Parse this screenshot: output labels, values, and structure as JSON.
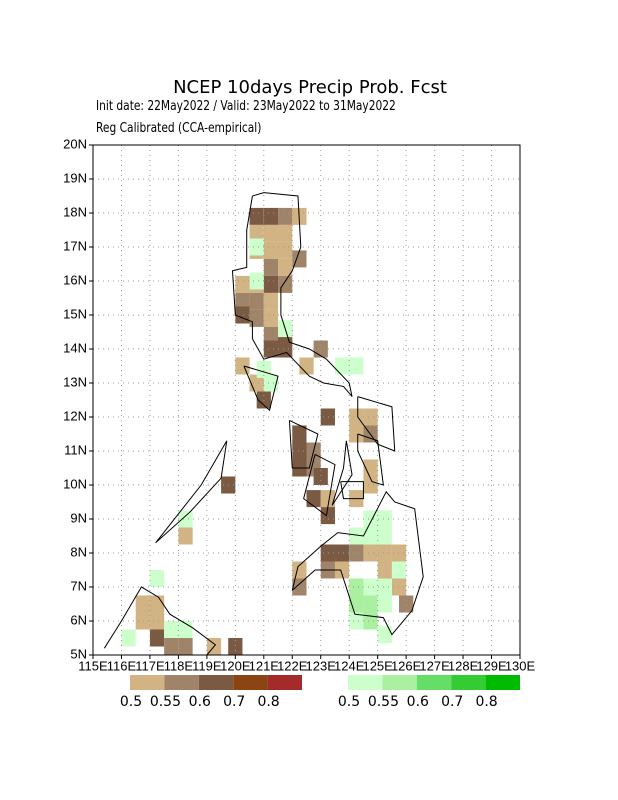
{
  "chart_data": {
    "type": "map",
    "title": "NCEP 10days Precip Prob. Fcst",
    "subtitle": "Init date: 22May2022 / Valid: 23May2022 to 31May2022",
    "note": "Reg Calibrated (CCA-empirical)",
    "xlim": [
      115,
      130
    ],
    "ylim": [
      5,
      20
    ],
    "cell_size": 0.5,
    "grid": true,
    "xticks": [
      {
        "value": 115,
        "label": "115E"
      },
      {
        "value": 116,
        "label": "116E"
      },
      {
        "value": 117,
        "label": "117E"
      },
      {
        "value": 118,
        "label": "118E"
      },
      {
        "value": 119,
        "label": "119E"
      },
      {
        "value": 120,
        "label": "120E"
      },
      {
        "value": 121,
        "label": "121E"
      },
      {
        "value": 122,
        "label": "122E"
      },
      {
        "value": 123,
        "label": "123E"
      },
      {
        "value": 124,
        "label": "124E"
      },
      {
        "value": 125,
        "label": "125E"
      },
      {
        "value": 126,
        "label": "126E"
      },
      {
        "value": 127,
        "label": "127E"
      },
      {
        "value": 128,
        "label": "128E"
      },
      {
        "value": 129,
        "label": "129E"
      },
      {
        "value": 130,
        "label": "130E"
      }
    ],
    "yticks": [
      {
        "value": 5,
        "label": "5N"
      },
      {
        "value": 6,
        "label": "6N"
      },
      {
        "value": 7,
        "label": "7N"
      },
      {
        "value": 8,
        "label": "8N"
      },
      {
        "value": 9,
        "label": "9N"
      },
      {
        "value": 10,
        "label": "10N"
      },
      {
        "value": 11,
        "label": "11N"
      },
      {
        "value": 12,
        "label": "12N"
      },
      {
        "value": 13,
        "label": "13N"
      },
      {
        "value": 14,
        "label": "14N"
      },
      {
        "value": 15,
        "label": "15N"
      },
      {
        "value": 16,
        "label": "16N"
      },
      {
        "value": 17,
        "label": "17N"
      },
      {
        "value": 18,
        "label": "18N"
      },
      {
        "value": 19,
        "label": "19N"
      },
      {
        "value": 20,
        "label": "20N"
      }
    ],
    "dry_legend": {
      "colors": [
        "#d2b383",
        "#a0846a",
        "#7a5a42",
        "#8b4513",
        "#a52a2a"
      ],
      "ticks": [
        0.5,
        0.55,
        0.6,
        0.7,
        0.8
      ]
    },
    "wet_legend": {
      "colors": [
        "#ccffcc",
        "#aaf0a0",
        "#66dd66",
        "#33cc33",
        "#00bb00"
      ],
      "ticks": [
        0.5,
        0.55,
        0.6,
        0.7,
        0.8
      ]
    },
    "dry_cells": {
      "lon": [
        120.75,
        121.25,
        121.75,
        122.25,
        120.75,
        121.25,
        121.75,
        121.25,
        121.75,
        120.75,
        121.25,
        121.75,
        122.25,
        120.25,
        120.75,
        121.25,
        121.75,
        120.25,
        120.75,
        121.25,
        120.25,
        120.75,
        121.25,
        121.25,
        121.75,
        121.25,
        121.75,
        120.25,
        120.75,
        121.0,
        122.5,
        123.0,
        123.25,
        124.25,
        124.75,
        124.25,
        124.75,
        122.25,
        122.25,
        122.75,
        122.25,
        122.75,
        123.0,
        124.75,
        124.75,
        122.75,
        123.25,
        123.25,
        124.25,
        119.75,
        118.25,
        123.25,
        123.75,
        124.25,
        124.75,
        125.25,
        125.75,
        123.25,
        123.75,
        125.25,
        125.75,
        126.0,
        122.25,
        122.25,
        116.75,
        117.25,
        116.75,
        117.25,
        117.25,
        117.75,
        118.25,
        119.25,
        120.0
      ],
      "lat": [
        17.9,
        17.9,
        17.9,
        17.9,
        17.4,
        17.4,
        17.4,
        16.9,
        16.9,
        16.9,
        16.4,
        16.4,
        16.65,
        15.9,
        15.9,
        15.9,
        15.9,
        15.4,
        15.4,
        15.4,
        15.0,
        14.9,
        14.9,
        14.4,
        14.4,
        14.0,
        14.0,
        13.5,
        13.0,
        12.5,
        13.5,
        14.0,
        12.0,
        12.0,
        12.0,
        11.5,
        11.5,
        11.5,
        11.0,
        11.0,
        10.5,
        10.5,
        10.25,
        10.5,
        10.0,
        9.6,
        9.6,
        9.1,
        9.6,
        10.0,
        8.5,
        8.0,
        8.0,
        8.0,
        8.0,
        8.0,
        8.0,
        7.5,
        7.5,
        7.5,
        7.0,
        6.5,
        7.0,
        7.5,
        6.5,
        6.5,
        6.0,
        6.0,
        5.5,
        5.25,
        5.25,
        5.25,
        5.25
      ],
      "prob": [
        0.6,
        0.6,
        0.55,
        0.5,
        0.5,
        0.5,
        0.5,
        0.5,
        0.5,
        0.5,
        0.55,
        0.5,
        0.55,
        0.5,
        0.5,
        0.6,
        0.55,
        0.55,
        0.55,
        0.5,
        0.6,
        0.55,
        0.5,
        0.55,
        0.6,
        0.6,
        0.6,
        0.5,
        0.5,
        0.6,
        0.5,
        0.55,
        0.6,
        0.5,
        0.5,
        0.5,
        0.55,
        0.6,
        0.6,
        0.55,
        0.6,
        0.55,
        0.6,
        0.5,
        0.5,
        0.6,
        0.5,
        0.6,
        0.5,
        0.6,
        0.5,
        0.6,
        0.6,
        0.55,
        0.5,
        0.5,
        0.5,
        0.55,
        0.5,
        0.5,
        0.5,
        0.55,
        0.55,
        0.5,
        0.5,
        0.5,
        0.5,
        0.5,
        0.6,
        0.55,
        0.55,
        0.5,
        0.6
      ]
    },
    "wet_cells": {
      "lon": [
        120.75,
        120.75,
        121.75,
        123.75,
        124.25,
        121.25,
        121.0,
        124.75,
        125.25,
        125.25,
        124.75,
        124.25,
        124.25,
        124.75,
        125.25,
        124.25,
        124.75,
        125.25,
        124.25,
        124.75,
        125.25,
        125.75,
        118.25,
        117.25,
        116.25,
        117.75,
        118.25
      ],
      "lat": [
        17.0,
        16.0,
        14.6,
        13.5,
        13.5,
        13.0,
        13.4,
        9.0,
        9.0,
        8.5,
        8.5,
        8.5,
        7.0,
        7.0,
        7.0,
        6.5,
        6.5,
        6.5,
        6.0,
        6.0,
        5.6,
        7.5,
        9.0,
        7.25,
        5.5,
        5.75,
        5.75
      ],
      "prob": [
        0.5,
        0.5,
        0.5,
        0.5,
        0.5,
        0.5,
        0.5,
        0.5,
        0.5,
        0.5,
        0.5,
        0.5,
        0.55,
        0.5,
        0.5,
        0.55,
        0.55,
        0.5,
        0.5,
        0.55,
        0.5,
        0.5,
        0.5,
        0.5,
        0.5,
        0.5,
        0.5
      ]
    }
  }
}
